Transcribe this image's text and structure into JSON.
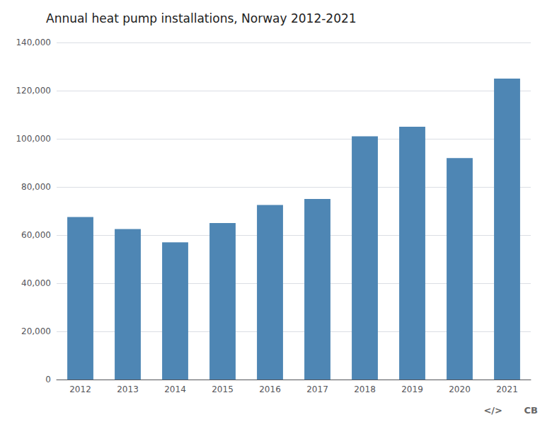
{
  "chart_data": {
    "type": "bar",
    "title": "Annual heat pump installations, Norway 2012-2021",
    "categories": [
      "2012",
      "2013",
      "2014",
      "2015",
      "2016",
      "2017",
      "2018",
      "2019",
      "2020",
      "2021"
    ],
    "values": [
      67500,
      62500,
      57000,
      65000,
      72500,
      75000,
      101000,
      105000,
      92000,
      125000
    ],
    "color": "#4e86b4",
    "ylim": [
      0,
      140000
    ],
    "yticks": [
      0,
      {
        "value": 20000,
        "label": "20,000"
      },
      {
        "value": 40000,
        "label": "40,000"
      },
      {
        "value": 60000,
        "label": "60,000"
      },
      {
        "value": 80000,
        "label": "80,000"
      },
      {
        "value": 100000,
        "label": "100,000"
      },
      {
        "value": 120000,
        "label": "120,000"
      },
      {
        "value": 140000,
        "label": "140,000"
      }
    ],
    "grid": true,
    "annotations": [
      "</>",
      "CB"
    ]
  }
}
